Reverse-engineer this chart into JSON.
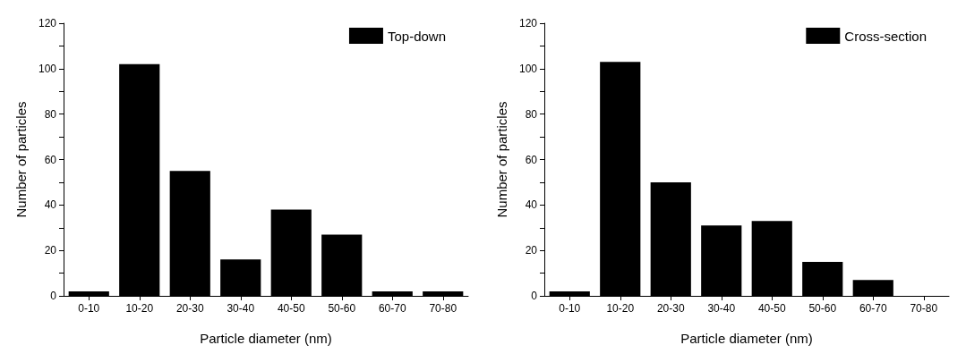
{
  "chart_data": [
    {
      "type": "bar",
      "xlabel": "Particle diameter (nm)",
      "ylabel": "Number of particles",
      "categories": [
        "0-10",
        "10-20",
        "20-30",
        "30-40",
        "40-50",
        "50-60",
        "60-70",
        "70-80"
      ],
      "series": [
        {
          "name": "Top-down",
          "color": "#000000",
          "values": [
            2,
            102,
            55,
            16,
            38,
            27,
            2,
            2
          ]
        }
      ],
      "ylim": [
        0,
        120
      ],
      "yticks": [
        0,
        {
          "value": 10,
          "label": null
        },
        20,
        {
          "value": 30,
          "label": null
        },
        40,
        {
          "value": 50,
          "label": null
        },
        60,
        {
          "value": 70,
          "label": null
        },
        80,
        {
          "value": 90,
          "label": null
        },
        100,
        {
          "value": 110,
          "label": null
        },
        120
      ],
      "grid": false,
      "legend": "top right"
    },
    {
      "type": "bar",
      "xlabel": "Particle diameter (nm)",
      "ylabel": "Number of particles",
      "categories": [
        "0-10",
        "10-20",
        "20-30",
        "30-40",
        "40-50",
        "50-60",
        "60-70",
        "70-80"
      ],
      "series": [
        {
          "name": "Cross-section",
          "color": "#000000",
          "values": [
            2,
            103,
            50,
            31,
            33,
            15,
            7,
            0
          ]
        }
      ],
      "ylim": [
        0,
        120
      ],
      "yticks": [
        0,
        {
          "value": 10,
          "label": null
        },
        20,
        {
          "value": 30,
          "label": null
        },
        40,
        {
          "value": 50,
          "label": null
        },
        60,
        {
          "value": 70,
          "label": null
        },
        80,
        {
          "value": 90,
          "label": null
        },
        100,
        {
          "value": 110,
          "label": null
        },
        120
      ],
      "grid": false,
      "legend": "top right"
    }
  ]
}
